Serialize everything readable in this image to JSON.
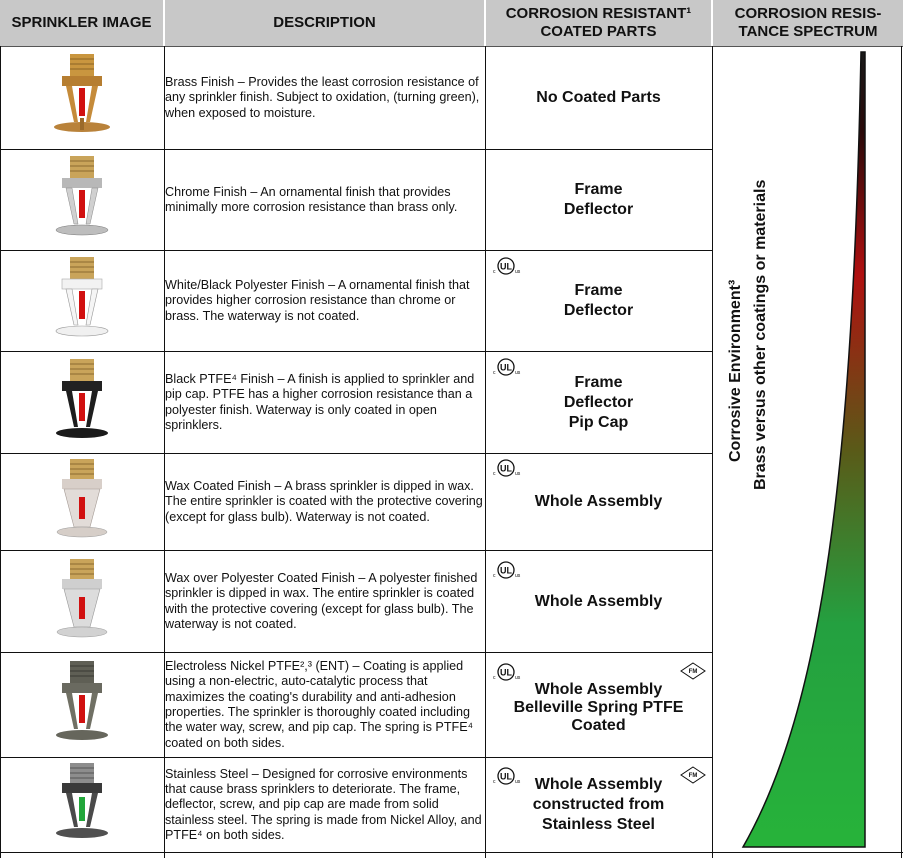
{
  "headers": {
    "col1": "SPRINKLER IMAGE",
    "col2": "DESCRIPTION",
    "col3": "CORROSION RESISTANT¹ COATED PARTS",
    "col4": "CORROSION RESIS-TANCE SPECTRUM"
  },
  "rows": [
    {
      "description": "Brass Finish – Provides the least corrosion resistance of any sprinkler finish. Subject to oxidation, (turning green), when exposed to moisture.",
      "parts": [
        "No Coated Parts"
      ]
    },
    {
      "description": "Chrome Finish – An ornamental finish that provides minimally more corrosion resistance than brass only.",
      "parts": [
        "Frame",
        "Deflector"
      ]
    },
    {
      "description": "White/Black Polyester Finish – A ornamental finish that provides higher corrosion resistance than chrome or brass.   The waterway is not coated.",
      "parts": [
        "Frame",
        "Deflector"
      ]
    },
    {
      "description": "Black PTFE⁴ Finish – A finish is applied to sprinkler and pip cap. PTFE has a higher corrosion resistance than a polyester finish.  Waterway is only coated in open sprinklers.",
      "parts": [
        "Frame",
        "Deflector",
        "Pip Cap"
      ]
    },
    {
      "description": "Wax Coated Finish – A brass sprinkler is dipped in wax. The entire sprinkler is coated with the protective covering (except for glass bulb).   Waterway is not coated.",
      "parts": [
        "Whole Assembly"
      ]
    },
    {
      "description": "Wax over Polyester Coated Finish – A polyester finished sprinkler is dipped in wax. The entire sprinkler is coated with the protective covering (except for glass bulb).  The waterway is not coated.",
      "parts": [
        "Whole Assembly"
      ]
    },
    {
      "description": "Electroless Nickel PTFE²,³ (ENT) – Coating is applied using a non-electric, auto-catalytic process that maximizes the coating's durability and anti-adhesion properties.  The sprinkler is thoroughly coated including the water way, screw, and pip cap.  The spring is PTFE⁴ coated on both sides.",
      "parts": [
        "Whole Assembly",
        "Belleville Spring PTFE",
        "Coated"
      ]
    },
    {
      "description": "Stainless Steel – Designed for corrosive environments that cause brass sprinklers to deteriorate. The frame, deflector, screw, and pip cap are made from solid stainless steel.  The spring is made from Nickel Alloy, and PTFE⁴ on both sides.",
      "parts": [
        "Whole Assembly",
        "constructed from",
        "Stainless Steel"
      ]
    }
  ],
  "spectrum": {
    "line1": "Corrosive Environment³",
    "line2": "Brass versus other coatings or materials",
    "color_top": "#b01010",
    "color_bottom": "#27b33a"
  },
  "badges": {
    "ul": "UL",
    "fm": "FM"
  }
}
